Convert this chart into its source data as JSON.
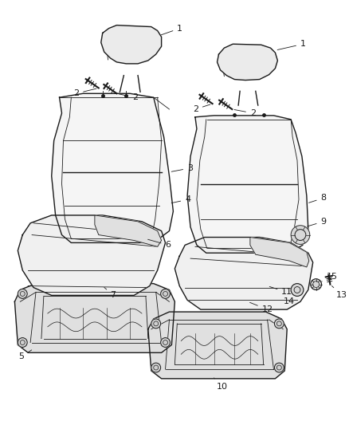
{
  "background_color": "#ffffff",
  "line_color": "#1a1a1a",
  "label_fontsize": 8,
  "fig_width": 4.38,
  "fig_height": 5.33,
  "dpi": 100
}
